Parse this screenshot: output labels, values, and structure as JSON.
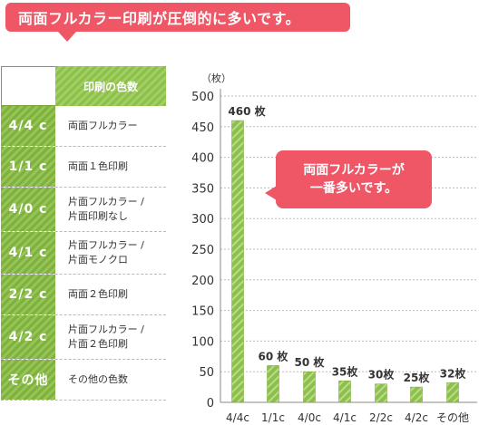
{
  "header": {
    "title": "両面フルカラー印刷が圧倒的に多いです。"
  },
  "legend": {
    "heading": "印刷の色数",
    "rows": [
      {
        "code": "4/4 c",
        "desc": "両面フルカラー"
      },
      {
        "code": "1/1 c",
        "desc": "両面１色印刷"
      },
      {
        "code": "4/0 c",
        "desc": "片面フルカラー /\n片面印刷なし"
      },
      {
        "code": "4/1 c",
        "desc": "片面フルカラー /\n片面モノクロ"
      },
      {
        "code": "2/2 c",
        "desc": "両面２色印刷"
      },
      {
        "code": "4/2 c",
        "desc": "片面フルカラー /\n片面２色印刷"
      },
      {
        "code": "その他",
        "desc": "その他の色数"
      }
    ]
  },
  "callout": {
    "text": "両面フルカラーが\n一番多いです。"
  },
  "chart_data": {
    "type": "bar",
    "unit_label": "（枚）",
    "categories": [
      "4/4c",
      "1/1c",
      "4/0c",
      "4/1c",
      "2/2c",
      "4/2c",
      "その他"
    ],
    "values": [
      460,
      60,
      50,
      35,
      30,
      25,
      32
    ],
    "value_labels": [
      "460 枚",
      "60 枚",
      "50 枚",
      "35枚",
      "30枚",
      "25枚",
      "32枚"
    ],
    "ylim": [
      0,
      500
    ],
    "yticks": [
      0,
      50,
      100,
      150,
      200,
      250,
      300,
      350,
      400,
      450,
      500
    ],
    "grid": true,
    "colors": {
      "bar": "#8dc04b",
      "bar_stripe": "#b8dc8a",
      "axis": "#888888",
      "grid": "#bbbbbb"
    }
  }
}
